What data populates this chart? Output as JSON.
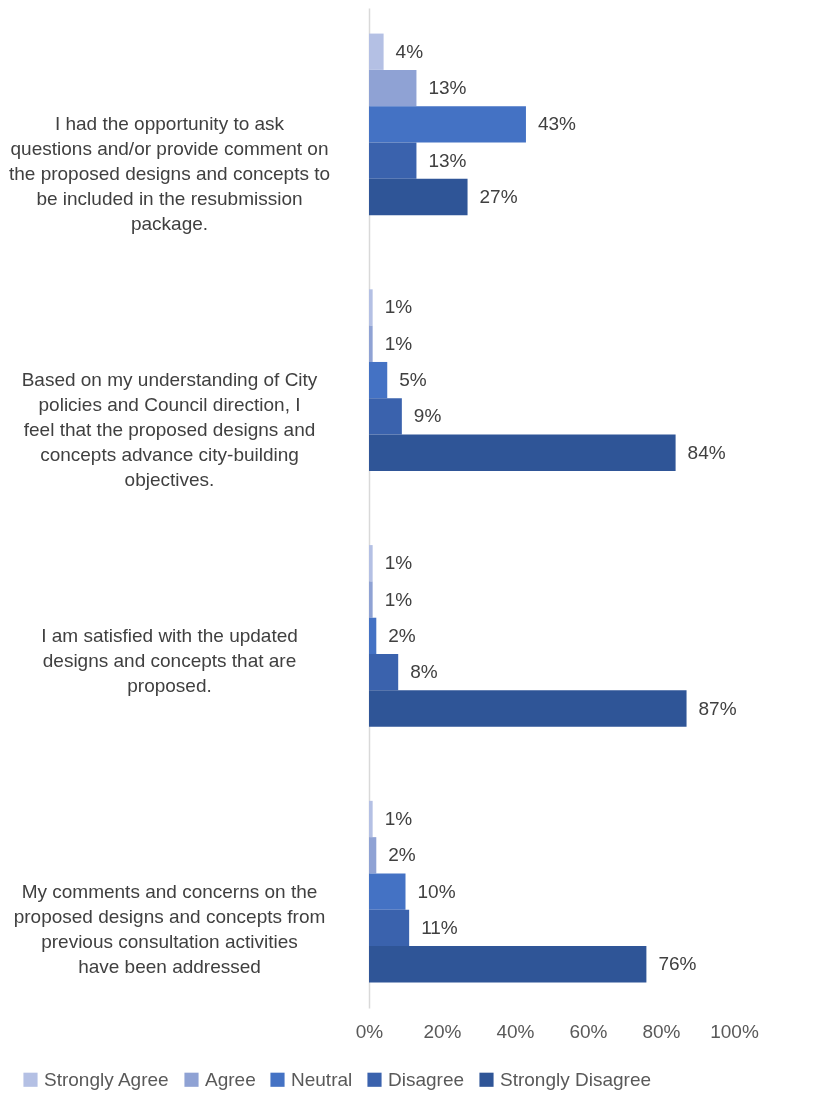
{
  "chart_data": {
    "type": "bar",
    "orientation": "horizontal",
    "categories": [
      "I had the opportunity to ask questions and/or provide comment on the proposed designs and concepts to be included in the resubmission package.",
      "Based on my understanding of City policies and Council direction, I feel that the proposed designs and concepts advance city-building objectives.",
      "I am satisfied with the updated designs and concepts that are proposed.",
      "My comments and concerns on the proposed designs and concepts from previous consultation activities have been addressed"
    ],
    "series": [
      {
        "name": "Strongly Agree",
        "color": "#b4c0e4",
        "values": [
          4,
          1,
          1,
          1
        ],
        "value_labels": [
          "4%",
          "1%",
          "1%",
          "1%"
        ]
      },
      {
        "name": "Agree",
        "color": "#8fa2d4",
        "values": [
          13,
          1,
          1,
          2
        ],
        "value_labels": [
          "13%",
          "1%",
          "1%",
          "2%"
        ]
      },
      {
        "name": "Neutral",
        "color": "#4472c4",
        "values": [
          43,
          5,
          2,
          10
        ],
        "value_labels": [
          "43%",
          "5%",
          "2%",
          "10%"
        ]
      },
      {
        "name": "Disagree",
        "color": "#3a62ad",
        "values": [
          13,
          9,
          8,
          11
        ],
        "value_labels": [
          "13%",
          "9%",
          "8%",
          "11%"
        ]
      },
      {
        "name": "Strongly Disagree",
        "color": "#2f5597",
        "values": [
          27,
          84,
          87,
          76
        ],
        "value_labels": [
          "27%",
          "84%",
          "87%",
          "76%"
        ]
      }
    ],
    "xlim": [
      0,
      100
    ],
    "xticks": [
      {
        "value": 0,
        "label": "0%"
      },
      {
        "value": 20,
        "label": "20%"
      },
      {
        "value": 40,
        "label": "40%"
      },
      {
        "value": 60,
        "label": "60%"
      },
      {
        "value": 80,
        "label": "80%"
      },
      {
        "value": 100,
        "label": "100%"
      }
    ],
    "grid": false,
    "legend": "bottom"
  }
}
